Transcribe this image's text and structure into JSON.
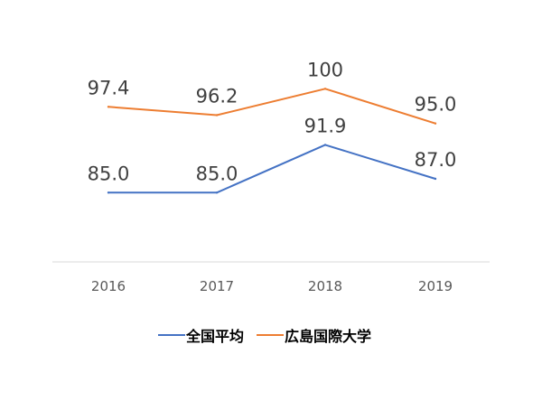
{
  "chart_data": {
    "type": "line",
    "categories": [
      "2016",
      "2017",
      "2018",
      "2019"
    ],
    "series": [
      {
        "name": "全国平均",
        "values": [
          85.0,
          85.0,
          91.9,
          87.0
        ],
        "labels": [
          "85.0",
          "85.0",
          "91.9",
          "87.0"
        ],
        "color": "#4472C4"
      },
      {
        "name": "広島国際大学",
        "values": [
          97.4,
          96.2,
          100,
          95.0
        ],
        "labels": [
          "97.4",
          "96.2",
          "100",
          "95.0"
        ],
        "color": "#ED7D31"
      }
    ],
    "ylim": [
      75,
      105
    ],
    "legend_position": "bottom",
    "grid": false,
    "colors": {
      "axis": "#D9D9D9",
      "tick_text": "#595959",
      "data_label": "#404040",
      "legend_text": "#000000"
    }
  }
}
